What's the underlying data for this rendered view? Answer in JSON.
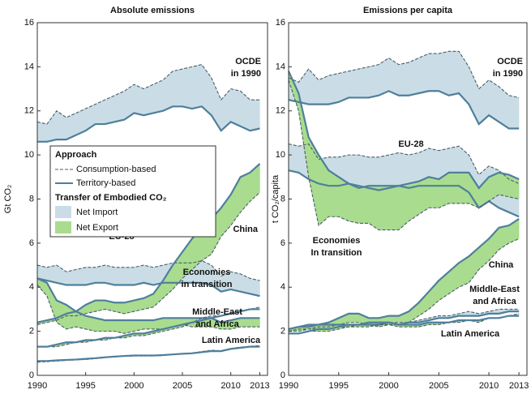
{
  "chart_data": [
    {
      "type": "line",
      "title": "Absolute emissions",
      "ylabel": "Gt CO₂",
      "x": [
        1990,
        1991,
        1992,
        1993,
        1994,
        1995,
        1996,
        1997,
        1998,
        1999,
        2000,
        2001,
        2002,
        2003,
        2004,
        2005,
        2006,
        2007,
        2008,
        2009,
        2010,
        2011,
        2012,
        2013
      ],
      "xlim": [
        1990,
        2013.8
      ],
      "xticks": [
        1990,
        1995,
        2000,
        2005,
        2010,
        2013
      ],
      "ylim": [
        0,
        16
      ],
      "yticks": [
        0,
        2,
        4,
        6,
        8,
        10,
        12,
        14,
        16
      ],
      "territory_color": "#4f7f9c",
      "consumption_color": "#4a5d6b",
      "import_color": "#cadde6",
      "export_color": "#a9dc8e",
      "legend": {
        "title": "Approach",
        "consumption": "Consumption-based",
        "territory": "Territory-based",
        "transfer_title": "Transfer of Embodied CO₂",
        "import": "Net Import",
        "export": "Net Export"
      },
      "regions": [
        {
          "label": [
            "OCDE",
            "in 1990"
          ],
          "territory": [
            10.6,
            10.6,
            10.7,
            10.7,
            10.9,
            11.1,
            11.4,
            11.4,
            11.5,
            11.6,
            11.9,
            11.8,
            11.9,
            12.0,
            12.2,
            12.2,
            12.1,
            12.2,
            11.8,
            11.1,
            11.5,
            11.3,
            11.1,
            11.2
          ],
          "consumption": [
            11.5,
            11.4,
            12.0,
            11.7,
            11.9,
            12.1,
            12.3,
            12.5,
            12.7,
            12.9,
            13.2,
            13.0,
            13.2,
            13.4,
            13.8,
            13.9,
            14.0,
            14.1,
            13.5,
            12.5,
            13.0,
            12.9,
            12.5,
            12.5
          ]
        },
        {
          "label": [
            "EU-28"
          ],
          "territory": [
            4.4,
            4.3,
            4.2,
            4.1,
            4.1,
            4.1,
            4.2,
            4.2,
            4.1,
            4.1,
            4.1,
            4.2,
            4.1,
            4.2,
            4.2,
            4.2,
            4.2,
            4.2,
            4.1,
            3.8,
            3.9,
            3.8,
            3.7,
            3.6
          ],
          "consumption": [
            5.0,
            4.9,
            5.0,
            4.7,
            4.8,
            4.9,
            4.9,
            5.0,
            4.9,
            4.9,
            4.9,
            5.0,
            4.9,
            5.0,
            5.1,
            5.1,
            5.1,
            5.2,
            5.0,
            4.5,
            4.7,
            4.6,
            4.4,
            4.3
          ]
        },
        {
          "label": [
            "China"
          ],
          "territory": [
            2.4,
            2.5,
            2.6,
            2.8,
            2.9,
            3.2,
            3.4,
            3.4,
            3.3,
            3.3,
            3.4,
            3.5,
            3.7,
            4.3,
            5.0,
            5.6,
            6.2,
            6.7,
            7.1,
            7.6,
            8.2,
            9.0,
            9.2,
            9.6
          ],
          "consumption": [
            2.3,
            2.4,
            2.5,
            2.7,
            2.7,
            2.8,
            2.9,
            3.0,
            2.9,
            2.8,
            2.9,
            3.0,
            3.1,
            3.5,
            3.9,
            4.4,
            4.8,
            5.2,
            5.5,
            6.3,
            6.8,
            7.4,
            7.9,
            8.3
          ]
        },
        {
          "label": [
            "Economies",
            "in transition"
          ],
          "territory": [
            4.4,
            4.2,
            3.4,
            3.2,
            2.9,
            2.7,
            2.6,
            2.5,
            2.5,
            2.5,
            2.5,
            2.5,
            2.5,
            2.6,
            2.6,
            2.6,
            2.6,
            2.6,
            2.6,
            2.4,
            2.5,
            2.6,
            2.6,
            2.6
          ],
          "consumption": [
            4.1,
            3.6,
            2.4,
            2.1,
            2.2,
            2.1,
            2.0,
            2.0,
            2.0,
            1.9,
            2.0,
            2.1,
            2.1,
            2.1,
            2.2,
            2.3,
            2.2,
            2.2,
            2.2,
            2.1,
            2.1,
            2.2,
            2.2,
            2.2
          ]
        },
        {
          "label": [
            "Middle-East",
            "and Africa"
          ],
          "territory": [
            1.3,
            1.3,
            1.4,
            1.5,
            1.5,
            1.6,
            1.6,
            1.7,
            1.7,
            1.8,
            1.9,
            1.9,
            2.0,
            2.1,
            2.2,
            2.3,
            2.4,
            2.5,
            2.6,
            2.7,
            2.8,
            2.9,
            3.0,
            3.0
          ],
          "consumption": [
            1.3,
            1.3,
            1.3,
            1.4,
            1.5,
            1.5,
            1.6,
            1.6,
            1.7,
            1.7,
            1.8,
            1.8,
            1.9,
            2.0,
            2.1,
            2.2,
            2.4,
            2.6,
            2.7,
            2.7,
            2.8,
            2.9,
            3.0,
            3.1
          ]
        },
        {
          "label": [
            "Latin America"
          ],
          "territory": [
            0.65,
            0.65,
            0.68,
            0.7,
            0.72,
            0.75,
            0.78,
            0.82,
            0.85,
            0.88,
            0.9,
            0.9,
            0.9,
            0.92,
            0.95,
            0.98,
            1.0,
            1.05,
            1.1,
            1.1,
            1.2,
            1.25,
            1.3,
            1.3
          ],
          "consumption": [
            0.6,
            0.62,
            0.65,
            0.68,
            0.7,
            0.72,
            0.76,
            0.8,
            0.84,
            0.86,
            0.88,
            0.88,
            0.88,
            0.9,
            0.94,
            0.98,
            1.02,
            1.08,
            1.14,
            1.12,
            1.22,
            1.28,
            1.32,
            1.35
          ]
        }
      ]
    },
    {
      "type": "line",
      "title": "Emissions per capita",
      "ylabel": "t CO₂/capita",
      "x": [
        1990,
        1991,
        1992,
        1993,
        1994,
        1995,
        1996,
        1997,
        1998,
        1999,
        2000,
        2001,
        2002,
        2003,
        2004,
        2005,
        2006,
        2007,
        2008,
        2009,
        2010,
        2011,
        2012,
        2013
      ],
      "xlim": [
        1990,
        2013.8
      ],
      "xticks": [
        1990,
        1995,
        2000,
        2005,
        2010,
        2013
      ],
      "ylim": [
        0,
        16
      ],
      "yticks": [
        0,
        2,
        4,
        6,
        8,
        10,
        12,
        14,
        16
      ],
      "territory_color": "#4f7f9c",
      "consumption_color": "#4a5d6b",
      "import_color": "#cadde6",
      "export_color": "#a9dc8e",
      "regions": [
        {
          "label": [
            "OCDE",
            "in 1990"
          ],
          "territory": [
            12.5,
            12.4,
            12.3,
            12.3,
            12.3,
            12.4,
            12.6,
            12.6,
            12.6,
            12.7,
            12.9,
            12.7,
            12.7,
            12.8,
            12.9,
            12.9,
            12.7,
            12.8,
            12.3,
            11.4,
            11.8,
            11.5,
            11.2,
            11.2
          ],
          "consumption": [
            13.5,
            13.3,
            13.9,
            13.4,
            13.6,
            13.7,
            13.8,
            13.9,
            14.0,
            14.1,
            14.4,
            14.1,
            14.2,
            14.4,
            14.6,
            14.6,
            14.7,
            14.7,
            14.0,
            13.0,
            13.4,
            13.1,
            12.7,
            12.6
          ]
        },
        {
          "label": [
            "EU-28"
          ],
          "territory": [
            9.3,
            9.2,
            8.9,
            8.7,
            8.6,
            8.6,
            8.7,
            8.6,
            8.5,
            8.4,
            8.5,
            8.6,
            8.5,
            8.6,
            8.6,
            8.6,
            8.6,
            8.6,
            8.3,
            7.6,
            7.9,
            7.6,
            7.4,
            7.2
          ],
          "consumption": [
            10.5,
            10.4,
            10.5,
            9.8,
            9.9,
            9.9,
            10.0,
            10.0,
            9.9,
            9.9,
            10.0,
            10.1,
            10.0,
            10.1,
            10.3,
            10.2,
            10.3,
            10.4,
            10.0,
            9.1,
            9.5,
            9.3,
            8.9,
            8.7
          ]
        },
        {
          "label": [
            "Economies",
            "In transition"
          ],
          "territory": [
            13.8,
            12.8,
            10.8,
            10.0,
            9.3,
            9.0,
            8.7,
            8.5,
            8.6,
            8.6,
            8.6,
            8.6,
            8.7,
            8.8,
            9.0,
            8.9,
            9.2,
            9.2,
            9.2,
            8.5,
            9.0,
            9.2,
            9.1,
            8.9
          ],
          "consumption": [
            13.4,
            12.0,
            9.0,
            6.8,
            7.2,
            7.2,
            7.0,
            6.9,
            6.9,
            6.6,
            6.6,
            6.6,
            7.0,
            7.3,
            7.6,
            7.6,
            7.8,
            7.8,
            7.8,
            7.6,
            7.9,
            8.2,
            8.1,
            8.0
          ]
        },
        {
          "label": [
            "China"
          ],
          "territory": [
            2.1,
            2.2,
            2.2,
            2.3,
            2.4,
            2.6,
            2.8,
            2.8,
            2.6,
            2.6,
            2.7,
            2.7,
            2.9,
            3.3,
            3.8,
            4.3,
            4.7,
            5.1,
            5.4,
            5.8,
            6.2,
            6.7,
            6.8,
            7.1
          ],
          "consumption": [
            2.0,
            2.1,
            2.1,
            2.2,
            2.2,
            2.3,
            2.4,
            2.4,
            2.3,
            2.2,
            2.3,
            2.3,
            2.4,
            2.7,
            3.0,
            3.4,
            3.7,
            4.0,
            4.2,
            4.8,
            5.2,
            5.7,
            6.0,
            6.2
          ]
        },
        {
          "label": [
            "Middle-East",
            "and Africa"
          ],
          "territory": [
            2.1,
            2.2,
            2.3,
            2.3,
            2.3,
            2.3,
            2.3,
            2.3,
            2.3,
            2.3,
            2.4,
            2.3,
            2.4,
            2.4,
            2.5,
            2.6,
            2.6,
            2.7,
            2.7,
            2.7,
            2.8,
            2.8,
            2.9,
            2.9
          ],
          "consumption": [
            2.0,
            2.0,
            2.1,
            2.1,
            2.1,
            2.2,
            2.2,
            2.3,
            2.3,
            2.3,
            2.4,
            2.4,
            2.4,
            2.5,
            2.6,
            2.7,
            2.7,
            2.8,
            2.9,
            2.8,
            2.9,
            3.0,
            3.0,
            3.0
          ]
        },
        {
          "label": [
            "Latin America"
          ],
          "territory": [
            1.9,
            1.9,
            2.0,
            2.1,
            2.1,
            2.2,
            2.3,
            2.3,
            2.4,
            2.4,
            2.4,
            2.3,
            2.3,
            2.3,
            2.4,
            2.4,
            2.4,
            2.5,
            2.5,
            2.5,
            2.6,
            2.6,
            2.7,
            2.7
          ],
          "consumption": [
            1.9,
            1.9,
            2.0,
            2.0,
            2.0,
            2.1,
            2.2,
            2.2,
            2.2,
            2.3,
            2.3,
            2.2,
            2.2,
            2.2,
            2.3,
            2.3,
            2.4,
            2.4,
            2.5,
            2.4,
            2.6,
            2.6,
            2.7,
            2.8
          ]
        }
      ]
    }
  ]
}
